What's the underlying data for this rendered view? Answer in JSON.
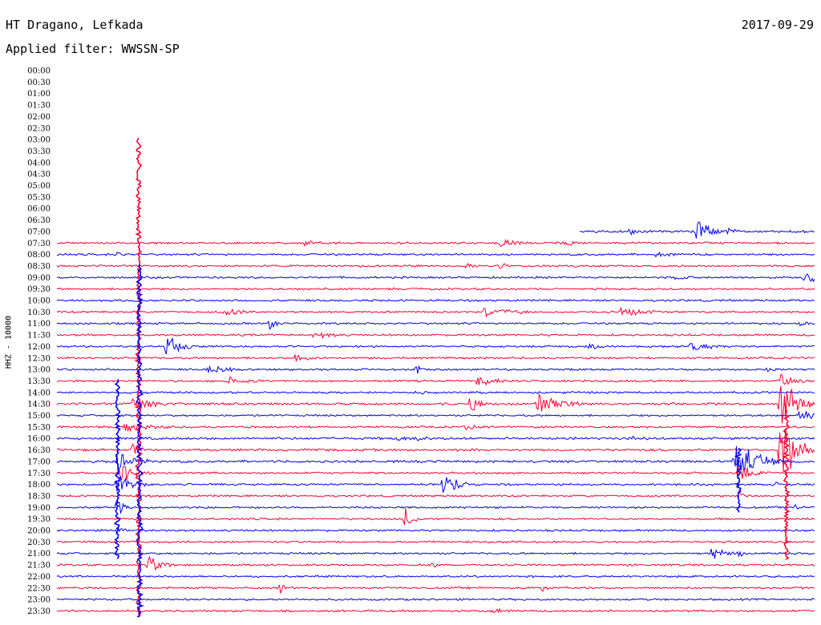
{
  "header": {
    "station": "HT Dragano, Lefkada",
    "date": "2017-09-29",
    "filter": "Applied filter: WWSSN-SP"
  },
  "chart_data": {
    "type": "line",
    "title": "HT Dragano, Lefkada",
    "subtitle": "Applied filter: WWSSN-SP",
    "date": "2017-09-29",
    "ylabel": "HHZ - 10000",
    "xlabel": "",
    "time_labels": [
      "00:00",
      "00:30",
      "01:00",
      "01:30",
      "02:00",
      "02:30",
      "03:00",
      "03:30",
      "04:00",
      "04:30",
      "05:00",
      "05:30",
      "06:00",
      "06:30",
      "07:00",
      "07:30",
      "08:00",
      "08:30",
      "09:00",
      "09:30",
      "10:00",
      "10:30",
      "11:00",
      "11:30",
      "12:00",
      "12:30",
      "13:00",
      "13:30",
      "14:00",
      "14:30",
      "15:00",
      "15:30",
      "16:00",
      "16:30",
      "17:00",
      "17:30",
      "18:00",
      "18:30",
      "19:00",
      "19:30",
      "20:00",
      "20:30",
      "21:00",
      "21:30",
      "22:00",
      "22:30",
      "23:00",
      "23:30"
    ],
    "row_minutes": 30,
    "data_start": 0.69,
    "colors": {
      "even": "#ff0033",
      "odd": "#0000ee"
    },
    "noise": [
      0.8,
      0.8,
      0.8,
      0.8,
      0.8,
      0.8,
      0.8,
      0.8,
      0.8,
      0.8,
      0.8,
      0.8,
      0.8,
      0.8,
      1.2,
      1.0,
      1.0,
      1.0,
      1.0,
      1.0,
      1.0,
      1.0,
      1.0,
      1.0,
      1.0,
      1.0,
      1.0,
      1.0,
      1.0,
      1.2,
      1.0,
      1.0,
      1.2,
      1.2,
      1.2,
      1.0,
      1.0,
      1.0,
      1.0,
      1.0,
      1.0,
      1.0,
      1.0,
      1.0,
      1.0,
      1.0,
      1.0,
      1.0
    ],
    "events": [
      {
        "row": 14,
        "t": 0.755,
        "amp": 4,
        "dur": 0.03
      },
      {
        "row": 14,
        "t": 0.845,
        "amp": 18,
        "dur": 0.02
      },
      {
        "row": 14,
        "t": 0.885,
        "amp": 5,
        "dur": 0.02
      },
      {
        "row": 15,
        "t": 0.325,
        "amp": 4,
        "dur": 0.03
      },
      {
        "row": 15,
        "t": 0.585,
        "amp": 5,
        "dur": 0.03
      },
      {
        "row": 15,
        "t": 0.67,
        "amp": 4,
        "dur": 0.03
      },
      {
        "row": 16,
        "t": 0.08,
        "amp": 5,
        "dur": 0.01
      },
      {
        "row": 16,
        "t": 0.79,
        "amp": 5,
        "dur": 0.02
      },
      {
        "row": 17,
        "t": 0.54,
        "amp": 4,
        "dur": 0.02
      },
      {
        "row": 17,
        "t": 0.585,
        "amp": 5,
        "dur": 0.01
      },
      {
        "row": 18,
        "t": 0.81,
        "amp": 4,
        "dur": 0.03
      },
      {
        "row": 18,
        "t": 0.985,
        "amp": 8,
        "dur": 0.03
      },
      {
        "row": 21,
        "t": 0.22,
        "amp": 6,
        "dur": 0.03
      },
      {
        "row": 21,
        "t": 0.565,
        "amp": 7,
        "dur": 0.04
      },
      {
        "row": 21,
        "t": 0.745,
        "amp": 6,
        "dur": 0.04
      },
      {
        "row": 22,
        "t": 0.28,
        "amp": 10,
        "dur": 0.01
      },
      {
        "row": 22,
        "t": 0.98,
        "amp": 4,
        "dur": 0.02
      },
      {
        "row": 23,
        "t": 0.34,
        "amp": 6,
        "dur": 0.03
      },
      {
        "row": 24,
        "t": 0.145,
        "amp": 14,
        "dur": 0.02
      },
      {
        "row": 24,
        "t": 0.7,
        "amp": 4,
        "dur": 0.03
      },
      {
        "row": 24,
        "t": 0.835,
        "amp": 7,
        "dur": 0.03
      },
      {
        "row": 25,
        "t": 0.31,
        "amp": 5,
        "dur": 0.03
      },
      {
        "row": 26,
        "t": 0.2,
        "amp": 6,
        "dur": 0.03
      },
      {
        "row": 26,
        "t": 0.475,
        "amp": 6,
        "dur": 0.01
      },
      {
        "row": 26,
        "t": 0.935,
        "amp": 4,
        "dur": 0.02
      },
      {
        "row": 27,
        "t": 0.225,
        "amp": 6,
        "dur": 0.03
      },
      {
        "row": 27,
        "t": 0.555,
        "amp": 7,
        "dur": 0.03
      },
      {
        "row": 27,
        "t": 0.955,
        "amp": 10,
        "dur": 0.02
      },
      {
        "row": 28,
        "t": 0.475,
        "amp": 4,
        "dur": 0.01
      },
      {
        "row": 29,
        "t": 0.1,
        "amp": 8,
        "dur": 0.04
      },
      {
        "row": 29,
        "t": 0.545,
        "amp": 10,
        "dur": 0.02
      },
      {
        "row": 29,
        "t": 0.635,
        "amp": 16,
        "dur": 0.03
      },
      {
        "row": 29,
        "t": 0.955,
        "amp": 40,
        "dur": 0.02
      },
      {
        "row": 30,
        "t": 0.98,
        "amp": 7,
        "dur": 0.03
      },
      {
        "row": 31,
        "t": 0.09,
        "amp": 7,
        "dur": 0.04
      },
      {
        "row": 31,
        "t": 0.54,
        "amp": 4,
        "dur": 0.02
      },
      {
        "row": 32,
        "t": 0.45,
        "amp": 4,
        "dur": 0.06
      },
      {
        "row": 32,
        "t": 0.76,
        "amp": 4,
        "dur": 0.01
      },
      {
        "row": 33,
        "t": 0.1,
        "amp": 10,
        "dur": 0.01
      },
      {
        "row": 33,
        "t": 0.955,
        "amp": 48,
        "dur": 0.02
      },
      {
        "row": 34,
        "t": 0.08,
        "amp": 18,
        "dur": 0.02
      },
      {
        "row": 34,
        "t": 0.895,
        "amp": 32,
        "dur": 0.025
      },
      {
        "row": 35,
        "t": 0.085,
        "amp": 14,
        "dur": 0.02
      },
      {
        "row": 35,
        "t": 0.9,
        "amp": 12,
        "dur": 0.02
      },
      {
        "row": 36,
        "t": 0.08,
        "amp": 14,
        "dur": 0.02
      },
      {
        "row": 36,
        "t": 0.51,
        "amp": 14,
        "dur": 0.02
      },
      {
        "row": 36,
        "t": 0.945,
        "amp": 5,
        "dur": 0.01
      },
      {
        "row": 37,
        "t": 0.9,
        "amp": 8,
        "dur": 0.01
      },
      {
        "row": 38,
        "t": 0.08,
        "amp": 12,
        "dur": 0.01
      },
      {
        "row": 38,
        "t": 0.975,
        "amp": 5,
        "dur": 0.01
      },
      {
        "row": 39,
        "t": 0.46,
        "amp": 14,
        "dur": 0.01
      },
      {
        "row": 40,
        "t": 0.08,
        "amp": 6,
        "dur": 0.01
      },
      {
        "row": 42,
        "t": 0.865,
        "amp": 12,
        "dur": 0.015
      },
      {
        "row": 42,
        "t": 0.9,
        "amp": 5,
        "dur": 0.01
      },
      {
        "row": 43,
        "t": 0.12,
        "amp": 12,
        "dur": 0.02
      },
      {
        "row": 43,
        "t": 0.495,
        "amp": 6,
        "dur": 0.01
      },
      {
        "row": 45,
        "t": 0.295,
        "amp": 8,
        "dur": 0.01
      },
      {
        "row": 45,
        "t": 0.64,
        "amp": 6,
        "dur": 0.01
      },
      {
        "row": 47,
        "t": 0.575,
        "amp": 4,
        "dur": 0.02
      }
    ],
    "spikes": [
      {
        "t": 0.108,
        "from_row": 6,
        "to_row": 47,
        "color": "#ff0033"
      },
      {
        "t": 0.109,
        "from_row": 17,
        "to_row": 47,
        "color": "#0000ee"
      },
      {
        "t": 0.08,
        "from_row": 27,
        "to_row": 42,
        "color": "#0000ee"
      },
      {
        "t": 0.963,
        "from_row": 29,
        "to_row": 42,
        "color": "#ff0033"
      },
      {
        "t": 0.9,
        "from_row": 33,
        "to_row": 38,
        "color": "#0000ee"
      }
    ]
  }
}
